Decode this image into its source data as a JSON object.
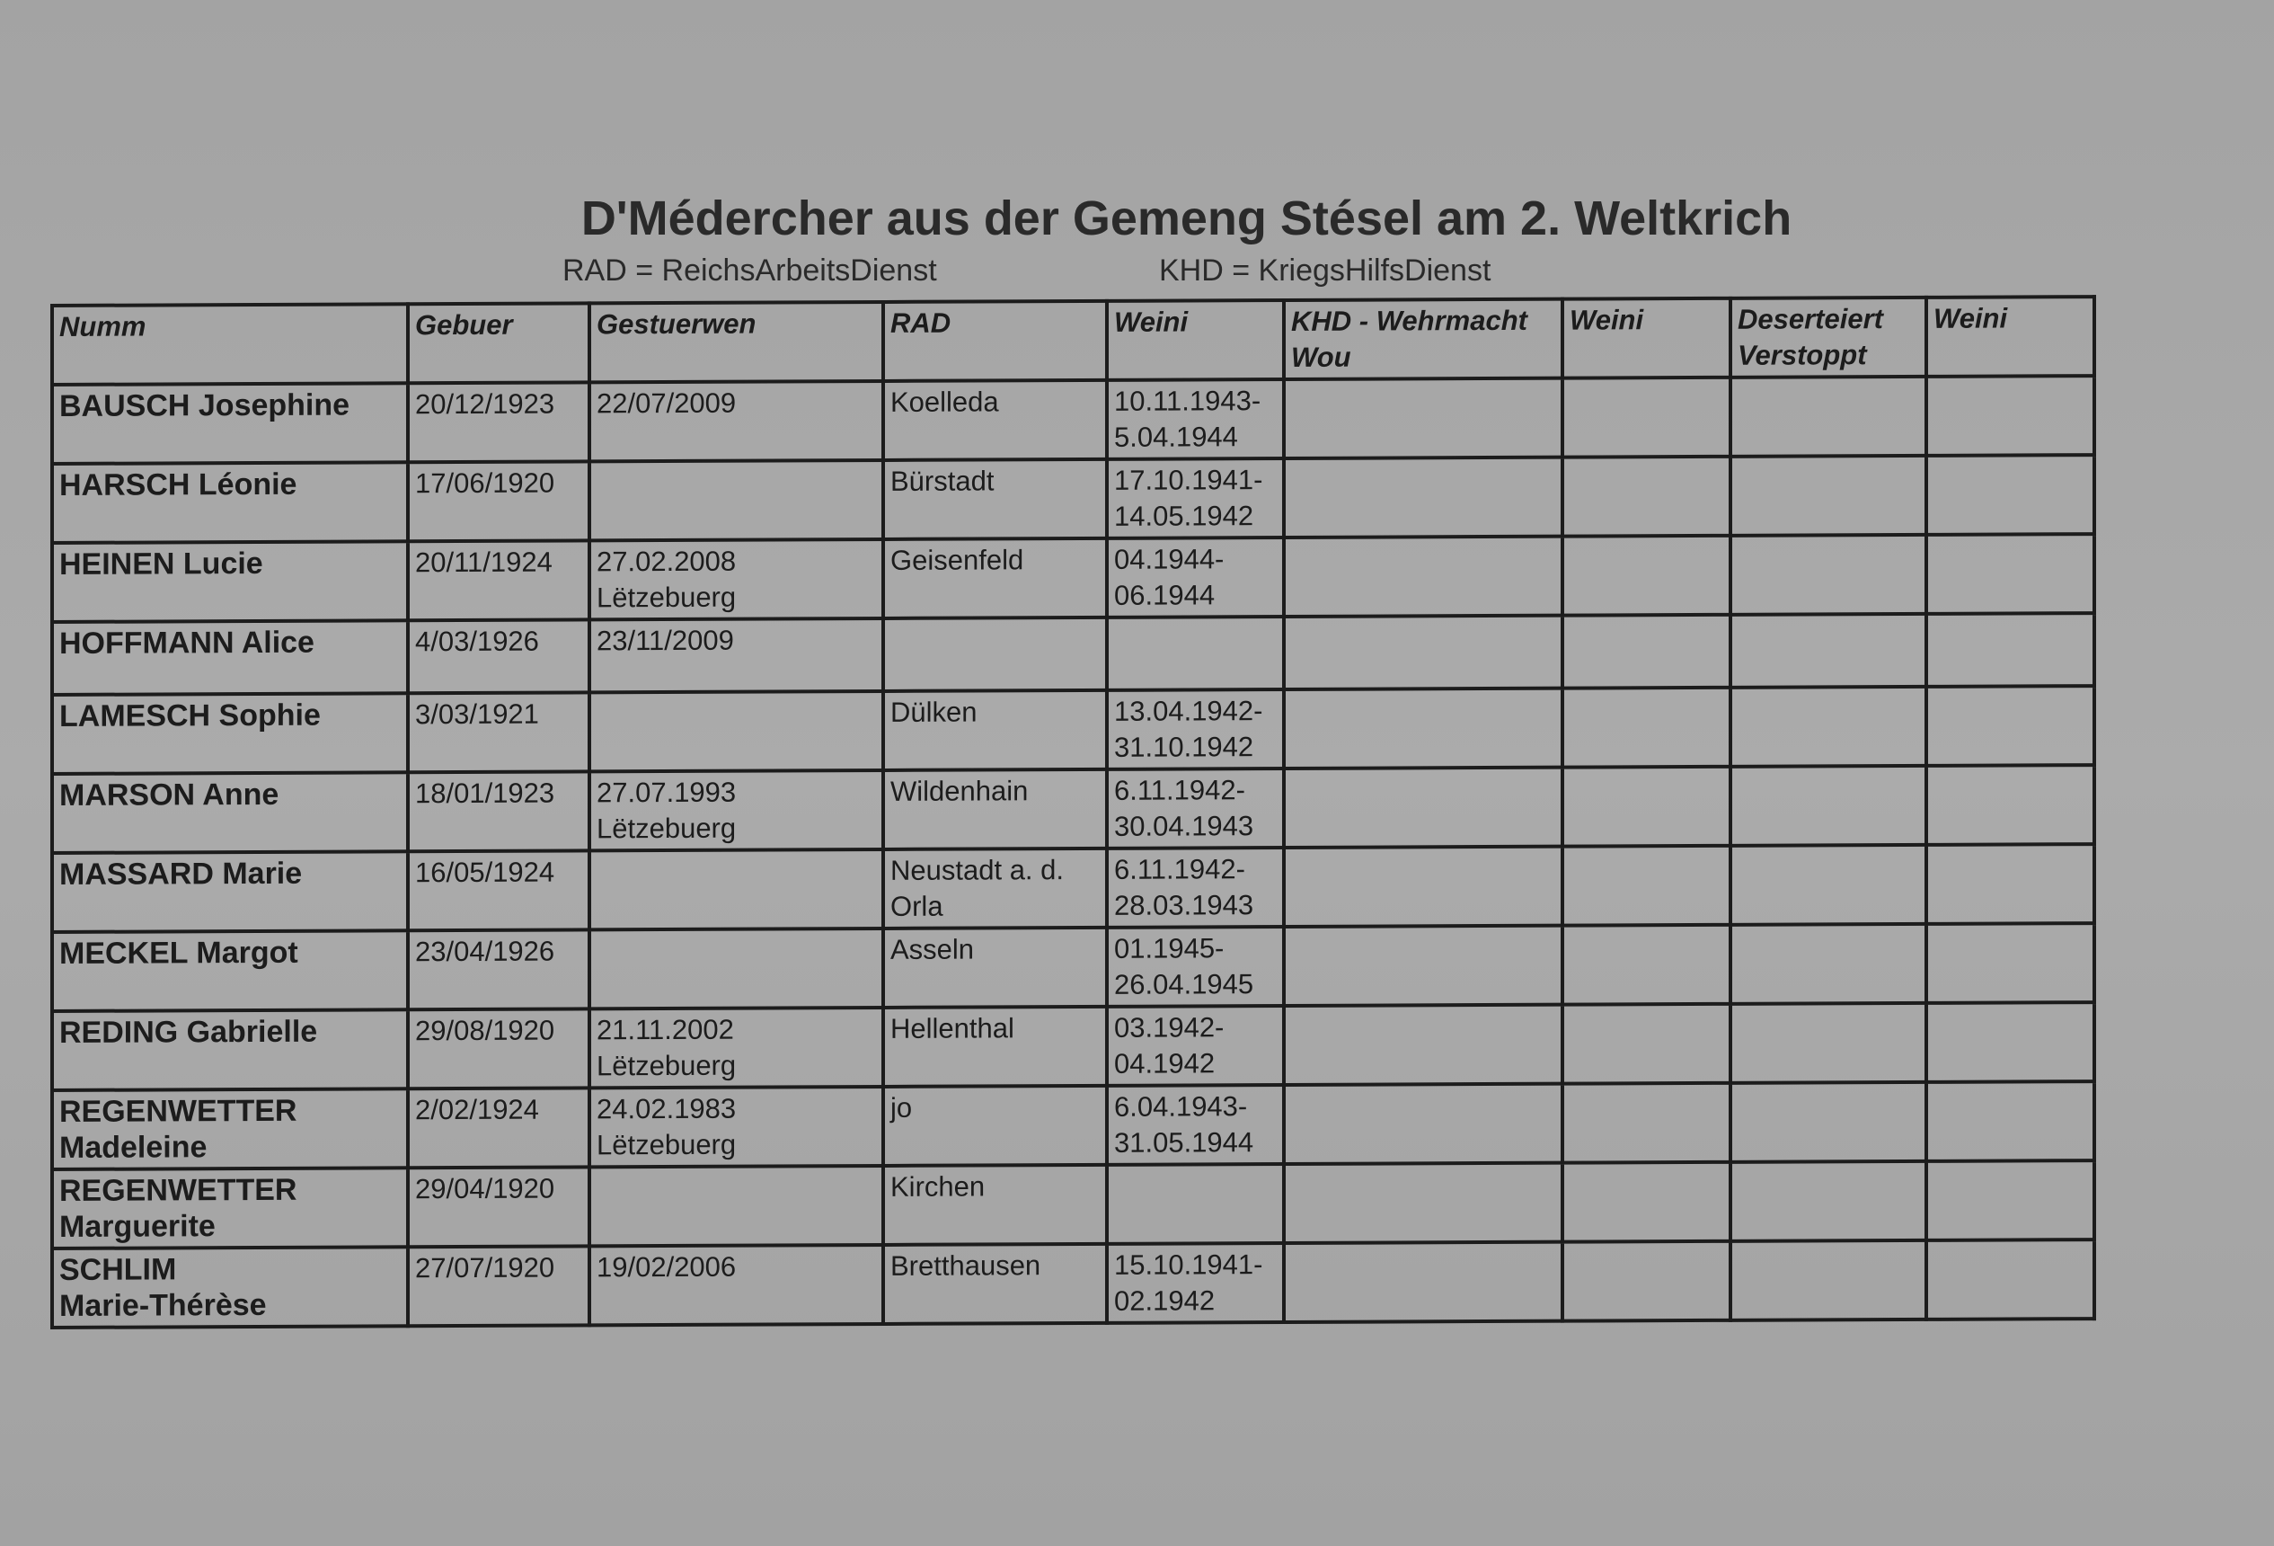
{
  "title": "D'Médercher aus der Gemeng Stésel am 2. Weltkrich",
  "legend": {
    "rad": "RAD = ReichsArbeitsDienst",
    "khd": "KHD = KriegsHilfsDienst"
  },
  "columns": [
    "Numm",
    "Gebuer",
    "Gestuerwen",
    "RAD",
    "Weini",
    "KHD - Wehrmacht\nWou",
    "Weini",
    "Deserteiert\nVerstoppt",
    "Weini"
  ],
  "rows": [
    {
      "name": "BAUSCH Josephine",
      "born": "20/12/1923",
      "died": "22/07/2009",
      "rad": "Koelleda",
      "when": "10.11.1943-\n5.04.1944"
    },
    {
      "name": "HARSCH Léonie",
      "born": "17/06/1920",
      "died": "",
      "rad": "Bürstadt",
      "when": "17.10.1941-\n14.05.1942"
    },
    {
      "name": "HEINEN Lucie",
      "born": "20/11/1924",
      "died": "27.02.2008\nLëtzebuerg",
      "rad": "Geisenfeld",
      "when": "04.1944-\n06.1944"
    },
    {
      "name": "HOFFMANN Alice",
      "born": "4/03/1926",
      "died": "23/11/2009",
      "rad": "",
      "when": ""
    },
    {
      "name": "LAMESCH Sophie",
      "born": "3/03/1921",
      "died": "",
      "rad": "Dülken",
      "when": "13.04.1942-\n31.10.1942"
    },
    {
      "name": "MARSON Anne",
      "born": "18/01/1923",
      "died": "27.07.1993\nLëtzebuerg",
      "rad": "Wildenhain",
      "when": "6.11.1942-\n30.04.1943"
    },
    {
      "name": "MASSARD Marie",
      "born": "16/05/1924",
      "died": "",
      "rad": "Neustadt a. d.\nOrla",
      "when": "6.11.1942-\n28.03.1943"
    },
    {
      "name": "MECKEL Margot",
      "born": "23/04/1926",
      "died": "",
      "rad": "Asseln",
      "when": "01.1945-\n26.04.1945"
    },
    {
      "name": "REDING Gabrielle",
      "born": "29/08/1920",
      "died": "21.11.2002\nLëtzebuerg",
      "rad": "Hellenthal",
      "when": "03.1942-\n04.1942"
    },
    {
      "name": "REGENWETTER\nMadeleine",
      "born": "2/02/1924",
      "died": "24.02.1983\nLëtzebuerg",
      "rad": "jo",
      "when": "6.04.1943-\n31.05.1944"
    },
    {
      "name": "REGENWETTER\nMarguerite",
      "born": "29/04/1920",
      "died": "",
      "rad": "Kirchen",
      "when": ""
    },
    {
      "name": "SCHLIM\nMarie-Thérèse",
      "born": "27/07/1920",
      "died": "19/02/2006",
      "rad": "Bretthausen",
      "when": "15.10.1941-\n02.1942"
    }
  ]
}
